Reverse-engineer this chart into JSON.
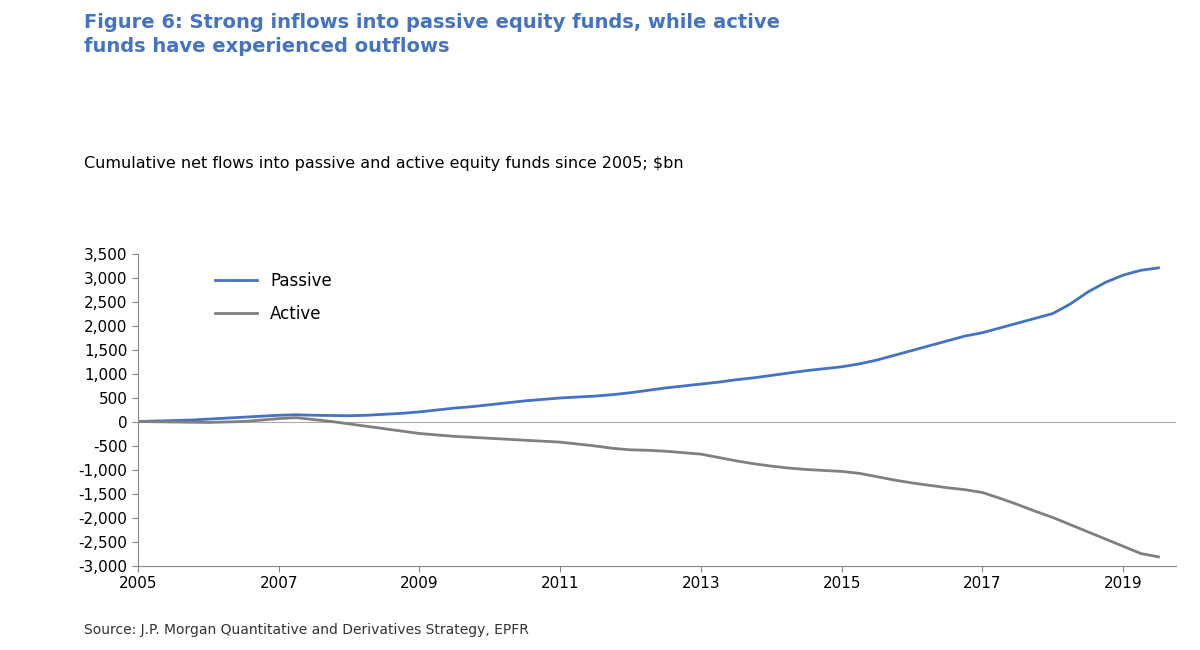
{
  "title_bold": "Figure 6: Strong inflows into passive equity funds, while active\nfunds have experienced outflows",
  "subtitle": "Cumulative net flows into passive and active equity funds since 2005; $bn",
  "source": "Source: J.P. Morgan Quantitative and Derivatives Strategy, EPFR",
  "title_color": "#4472C4",
  "subtitle_color": "#000000",
  "passive_color": "#4472C4",
  "active_color": "#808080",
  "background_color": "#FFFFFF",
  "years": [
    2005,
    2005.25,
    2005.5,
    2005.75,
    2006,
    2006.25,
    2006.5,
    2006.75,
    2007,
    2007.25,
    2007.5,
    2007.75,
    2008,
    2008.25,
    2008.5,
    2008.75,
    2009,
    2009.25,
    2009.5,
    2009.75,
    2010,
    2010.25,
    2010.5,
    2010.75,
    2011,
    2011.25,
    2011.5,
    2011.75,
    2012,
    2012.25,
    2012.5,
    2012.75,
    2013,
    2013.25,
    2013.5,
    2013.75,
    2014,
    2014.25,
    2014.5,
    2014.75,
    2015,
    2015.25,
    2015.5,
    2015.75,
    2016,
    2016.25,
    2016.5,
    2016.75,
    2017,
    2017.25,
    2017.5,
    2017.75,
    2018,
    2018.25,
    2018.5,
    2018.75,
    2019,
    2019.25,
    2019.5
  ],
  "passive": [
    0,
    10,
    20,
    30,
    50,
    70,
    90,
    110,
    130,
    140,
    130,
    125,
    120,
    130,
    150,
    170,
    200,
    240,
    280,
    310,
    350,
    390,
    430,
    460,
    490,
    510,
    530,
    560,
    600,
    650,
    700,
    740,
    780,
    820,
    870,
    910,
    960,
    1010,
    1060,
    1100,
    1140,
    1200,
    1280,
    1380,
    1480,
    1580,
    1680,
    1780,
    1850,
    1950,
    2050,
    2150,
    2250,
    2450,
    2700,
    2900,
    3050,
    3150,
    3200
  ],
  "active": [
    0,
    -5,
    -10,
    -15,
    -20,
    -10,
    0,
    30,
    60,
    80,
    40,
    0,
    -50,
    -100,
    -150,
    -200,
    -250,
    -280,
    -310,
    -330,
    -350,
    -370,
    -390,
    -410,
    -430,
    -470,
    -510,
    -560,
    -590,
    -600,
    -620,
    -650,
    -680,
    -750,
    -820,
    -880,
    -930,
    -970,
    -1000,
    -1020,
    -1040,
    -1080,
    -1150,
    -1220,
    -1280,
    -1330,
    -1380,
    -1420,
    -1480,
    -1600,
    -1730,
    -1870,
    -2000,
    -2150,
    -2300,
    -2450,
    -2600,
    -2750,
    -2820
  ],
  "xlim": [
    2005,
    2019.75
  ],
  "ylim": [
    -3000,
    3500
  ],
  "yticks": [
    -3000,
    -2500,
    -2000,
    -1500,
    -1000,
    -500,
    0,
    500,
    1000,
    1500,
    2000,
    2500,
    3000,
    3500
  ],
  "xticks": [
    2005,
    2007,
    2009,
    2011,
    2013,
    2015,
    2017,
    2019
  ]
}
